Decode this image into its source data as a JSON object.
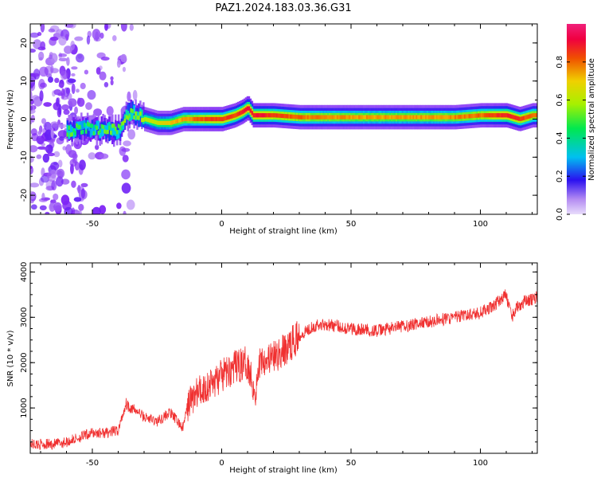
{
  "title": "PAZ1.2024.183.03.36.G31",
  "chart_data": [
    {
      "type": "heatmap",
      "xlabel": "Height of straight line (km)",
      "ylabel": "Frequency (Hz)",
      "xlim": [
        -74,
        122
      ],
      "ylim": [
        -25,
        25
      ],
      "xticks": [
        -50,
        0,
        50,
        100
      ],
      "yticks": [
        -20,
        -10,
        0,
        10,
        20
      ],
      "colorbar": {
        "label": "Normalized spectral amplitude",
        "range": [
          0.0,
          1.0
        ],
        "ticks": [
          0.0,
          0.2,
          0.4,
          0.6,
          0.8
        ],
        "colormap": [
          "#c6a8f5",
          "#7a1cf5",
          "#1c2cf5",
          "#00c8f0",
          "#00f060",
          "#b0f000",
          "#f0c000",
          "#f05000",
          "#f00040",
          "#f0207a"
        ]
      },
      "ridge": {
        "x": [
          -60,
          -55,
          -50,
          -45,
          -40,
          -37,
          -35,
          -30,
          -25,
          -20,
          -15,
          -10,
          -5,
          0,
          5,
          8,
          10,
          12,
          15,
          20,
          30,
          40,
          50,
          60,
          70,
          80,
          90,
          100,
          105,
          110,
          115,
          120,
          122
        ],
        "freq": [
          -3,
          -2.5,
          -2.5,
          -3,
          -3,
          1,
          2,
          0,
          -1,
          -1,
          0,
          0,
          0,
          0,
          1,
          2,
          3,
          1,
          1,
          1,
          0.5,
          0.5,
          0.5,
          0.5,
          0.5,
          0.5,
          0.5,
          1,
          1,
          1,
          0,
          1,
          1
        ],
        "amplitude": [
          0.5,
          0.45,
          0.45,
          0.5,
          0.5,
          0.55,
          0.5,
          0.55,
          0.6,
          0.65,
          0.7,
          0.75,
          0.8,
          0.8,
          0.8,
          0.85,
          0.9,
          0.85,
          0.85,
          0.8,
          0.75,
          0.72,
          0.7,
          0.7,
          0.7,
          0.7,
          0.72,
          0.75,
          0.8,
          0.85,
          0.8,
          0.75,
          0.75
        ]
      },
      "noise_region_x": [
        -74,
        -33
      ]
    },
    {
      "type": "line",
      "xlabel": "Height of straight line (km)",
      "ylabel": "SNR (10 * v/v)",
      "xlim": [
        -74,
        122
      ],
      "ylim": [
        0,
        4200
      ],
      "xticks": [
        -50,
        0,
        50,
        100
      ],
      "yticks": [
        1000,
        2000,
        3000,
        4000
      ],
      "series": [
        {
          "color": "#f03030",
          "x": [
            -74,
            -65,
            -60,
            -55,
            -50,
            -45,
            -40,
            -37,
            -35,
            -32,
            -30,
            -25,
            -20,
            -17,
            -15,
            -13,
            -10,
            -5,
            0,
            5,
            10,
            13,
            15,
            20,
            25,
            30,
            35,
            40,
            50,
            60,
            70,
            80,
            90,
            100,
            105,
            108,
            110,
            112,
            114,
            117,
            120,
            122
          ],
          "y": [
            200,
            200,
            250,
            350,
            450,
            450,
            500,
            1100,
            1000,
            900,
            800,
            700,
            900,
            700,
            550,
            1100,
            1300,
            1500,
            1700,
            1900,
            2000,
            1300,
            2100,
            2100,
            2300,
            2600,
            2800,
            2850,
            2750,
            2700,
            2800,
            2900,
            3000,
            3100,
            3250,
            3400,
            3500,
            3000,
            3200,
            3350,
            3400,
            3450
          ]
        }
      ]
    }
  ]
}
